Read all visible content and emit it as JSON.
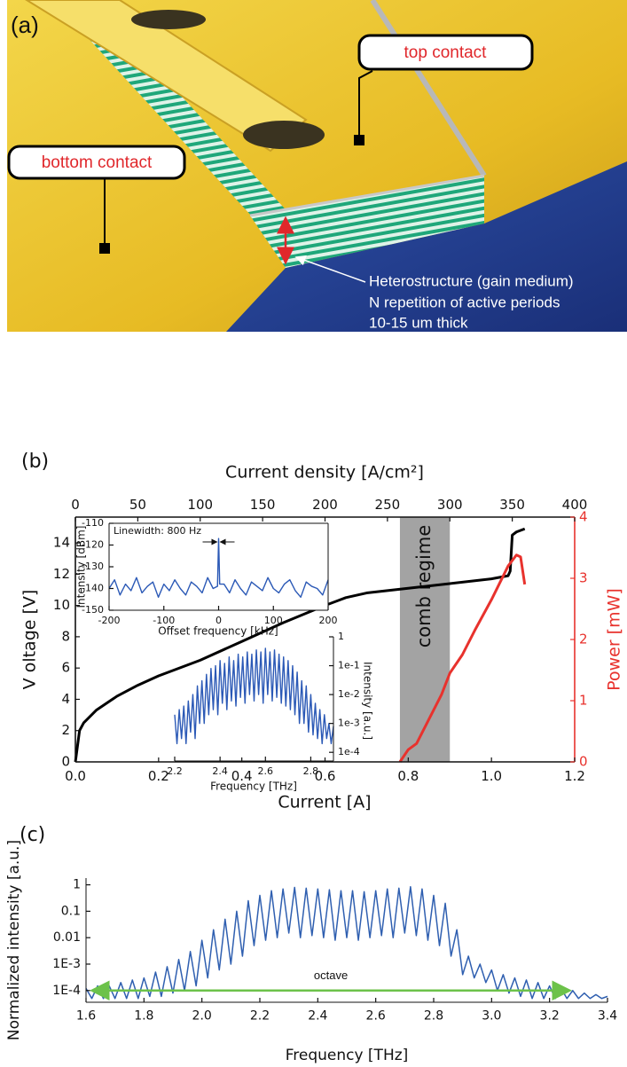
{
  "panel_a": {
    "label": "(a)",
    "callouts": [
      "top contact",
      "bottom contact"
    ],
    "annotation": [
      "Heterostructure (gain medium)",
      "N repetition of active periods",
      "10-15 um thick"
    ]
  },
  "chart_data": [
    {
      "type": "line",
      "panel_label": "(b)",
      "xlabel": "Current [A]",
      "x2label": "Current density [A/cm²]",
      "ylabel": "V oltage [V]",
      "y2label": "Power [mW]",
      "xlim": [
        0,
        1.2
      ],
      "xticks": [
        {
          "value": 0,
          "label": "0.0"
        },
        0.2,
        0.4,
        0.6,
        0.8,
        {
          "value": 1,
          "label": "1.0"
        },
        1.2
      ],
      "x2lim": [
        0,
        400
      ],
      "x2ticks": [
        0,
        50,
        100,
        150,
        200,
        250,
        300,
        350,
        400
      ],
      "ylim": [
        0,
        15.65
      ],
      "yticks": [
        0,
        2,
        4,
        6,
        8,
        10,
        12,
        14
      ],
      "y2lim": [
        0,
        4
      ],
      "y2ticks": [
        0,
        1,
        2,
        3,
        4
      ],
      "bands": [
        {
          "label": "comb regime",
          "range": [
            0.78,
            0.9
          ],
          "color": "#a3a3a3"
        }
      ],
      "series": [
        {
          "color": "#000000",
          "x": [
            0,
            0.01,
            0.02,
            0.05,
            0.1,
            0.15,
            0.2,
            0.3,
            0.4,
            0.5,
            0.6,
            0.65,
            0.7,
            0.8,
            0.9,
            1.0,
            1.04,
            1.045,
            1.05,
            1.06,
            1.08
          ],
          "values": [
            0,
            2,
            2.5,
            3.3,
            4.2,
            4.9,
            5.5,
            6.5,
            7.7,
            8.9,
            10,
            10.5,
            10.8,
            11.1,
            11.4,
            11.7,
            11.9,
            12.2,
            14.5,
            14.7,
            14.9
          ]
        },
        {
          "color": "#e8322d",
          "axis": "y2",
          "x": [
            0.78,
            0.8,
            0.82,
            0.85,
            0.88,
            0.9,
            0.93,
            0.96,
            1.0,
            1.04,
            1.06,
            1.07,
            1.08
          ],
          "values": [
            0,
            0.2,
            0.3,
            0.7,
            1.1,
            1.45,
            1.75,
            2.15,
            2.65,
            3.2,
            3.38,
            3.35,
            2.9
          ]
        }
      ]
    },
    {
      "type": "line",
      "xlabel": "Offset frequency  [kHz]",
      "ylabel": "Intensity [dBm]",
      "xlim": [
        -200,
        200
      ],
      "xticks": [
        -200,
        -100,
        0,
        100,
        200
      ],
      "ylim": [
        -150,
        -110
      ],
      "yticks": [
        -150,
        -140,
        -130,
        -120,
        -110
      ],
      "annotations": [
        {
          "text": "Linewidth: 800 Hz"
        }
      ],
      "series": [
        {
          "color": "#2b59b6",
          "x": [
            -200,
            -190,
            -180,
            -170,
            -160,
            -150,
            -140,
            -130,
            -120,
            -110,
            -100,
            -90,
            -80,
            -70,
            -60,
            -50,
            -40,
            -30,
            -20,
            -10,
            -2,
            0,
            2,
            10,
            20,
            30,
            40,
            50,
            60,
            70,
            80,
            90,
            100,
            110,
            120,
            130,
            140,
            150,
            160,
            170,
            180,
            190,
            200
          ],
          "values": [
            -140,
            -136,
            -143,
            -138,
            -141,
            -135,
            -142,
            -139,
            -137,
            -144,
            -138,
            -141,
            -136,
            -140,
            -143,
            -137,
            -139,
            -142,
            -135,
            -140,
            -139,
            -117,
            -138,
            -138,
            -142,
            -136,
            -140,
            -143,
            -137,
            -139,
            -141,
            -135,
            -140,
            -142,
            -138,
            -136,
            -141,
            -144,
            -137,
            -139,
            -140,
            -143,
            -136
          ]
        }
      ]
    },
    {
      "type": "line",
      "xlabel": "Frequency [THz]",
      "ylabel": "Intensity [a.u.]",
      "xlim": [
        2.2,
        2.9
      ],
      "xticks": [
        2.2,
        2.4,
        2.6,
        2.8
      ],
      "yscale": "log",
      "ylim": [
        5e-05,
        1
      ],
      "yticks": [
        1,
        {
          "value": 0.1,
          "label": "1e-1"
        },
        {
          "value": 0.01,
          "label": "1e-2"
        },
        {
          "value": 0.001,
          "label": "1e-3"
        },
        {
          "value": 0.0001,
          "label": "1e-4"
        }
      ],
      "series": [
        {
          "color": "#2b59b6",
          "x": [
            2.2,
            2.21,
            2.22,
            2.23,
            2.24,
            2.25,
            2.26,
            2.27,
            2.28,
            2.29,
            2.3,
            2.31,
            2.32,
            2.33,
            2.34,
            2.35,
            2.36,
            2.37,
            2.38,
            2.39,
            2.4,
            2.41,
            2.42,
            2.43,
            2.44,
            2.45,
            2.46,
            2.47,
            2.48,
            2.49,
            2.5,
            2.51,
            2.52,
            2.53,
            2.54,
            2.55,
            2.56,
            2.57,
            2.58,
            2.59,
            2.6,
            2.61,
            2.62,
            2.63,
            2.64,
            2.65,
            2.66,
            2.67,
            2.68,
            2.69,
            2.7,
            2.71,
            2.72,
            2.73,
            2.74,
            2.75,
            2.76,
            2.77,
            2.78,
            2.79,
            2.8,
            2.81,
            2.82,
            2.83,
            2.84,
            2.85,
            2.86,
            2.87,
            2.88,
            2.89,
            2.9
          ],
          "values": [
            0.002,
            0.0002,
            0.003,
            0.0003,
            0.004,
            0.0002,
            0.006,
            0.0005,
            0.01,
            0.0003,
            0.02,
            0.001,
            0.03,
            0.001,
            0.05,
            0.002,
            0.08,
            0.003,
            0.1,
            0.002,
            0.15,
            0.005,
            0.12,
            0.003,
            0.2,
            0.006,
            0.15,
            0.004,
            0.25,
            0.008,
            0.2,
            0.005,
            0.3,
            0.01,
            0.25,
            0.006,
            0.35,
            0.01,
            0.3,
            0.005,
            0.4,
            0.01,
            0.3,
            0.006,
            0.35,
            0.008,
            0.25,
            0.005,
            0.2,
            0.004,
            0.15,
            0.003,
            0.1,
            0.002,
            0.06,
            0.001,
            0.03,
            0.001,
            0.02,
            0.0005,
            0.01,
            0.0004,
            0.005,
            0.0003,
            0.003,
            0.0002,
            0.002,
            0.0003,
            0.001,
            0.0002,
            0.0008
          ]
        }
      ]
    },
    {
      "type": "line",
      "panel_label": "(c)",
      "xlabel": "Frequency [THz]",
      "ylabel": "Normalized intensity [a.u.]",
      "xlim": [
        1.6,
        3.4
      ],
      "xticks": [
        1.6,
        1.8,
        {
          "value": 2,
          "label": "2.0"
        },
        2.2,
        2.4,
        2.6,
        2.8,
        {
          "value": 3,
          "label": "3.0"
        },
        3.2,
        3.4
      ],
      "yscale": "log",
      "ylim": [
        3.6e-05,
        1.8
      ],
      "yticks": [
        1,
        0.1,
        0.01,
        {
          "value": 0.001,
          "label": "1E-3"
        },
        {
          "value": 0.0001,
          "label": "1E-4"
        }
      ],
      "annotations": [
        {
          "text": "octave",
          "x": [
            1.62,
            3.27
          ],
          "y": 0.0001,
          "color": "#6cc24a"
        }
      ],
      "series": [
        {
          "color": "#2f5fb0",
          "x": [
            1.6,
            1.62,
            1.64,
            1.66,
            1.68,
            1.7,
            1.72,
            1.74,
            1.76,
            1.78,
            1.8,
            1.82,
            1.84,
            1.86,
            1.88,
            1.9,
            1.92,
            1.94,
            1.96,
            1.98,
            2.0,
            2.02,
            2.04,
            2.06,
            2.08,
            2.1,
            2.12,
            2.14,
            2.16,
            2.18,
            2.2,
            2.22,
            2.24,
            2.26,
            2.28,
            2.3,
            2.32,
            2.34,
            2.36,
            2.38,
            2.4,
            2.42,
            2.44,
            2.46,
            2.48,
            2.5,
            2.52,
            2.54,
            2.56,
            2.58,
            2.6,
            2.62,
            2.64,
            2.66,
            2.68,
            2.7,
            2.72,
            2.74,
            2.76,
            2.78,
            2.8,
            2.82,
            2.84,
            2.86,
            2.88,
            2.9,
            2.92,
            2.94,
            2.96,
            2.98,
            3.0,
            3.02,
            3.04,
            3.06,
            3.08,
            3.1,
            3.12,
            3.14,
            3.16,
            3.18,
            3.2,
            3.22,
            3.24,
            3.26,
            3.28,
            3.3,
            3.32,
            3.34,
            3.36,
            3.38,
            3.4
          ],
          "values": [
            0.00012,
            5e-05,
            0.00015,
            5e-05,
            0.00015,
            5e-05,
            0.0002,
            5e-05,
            0.00025,
            5e-05,
            0.0003,
            6e-05,
            0.0005,
            6e-05,
            0.0008,
            8e-05,
            0.0015,
            0.0001,
            0.003,
            0.00015,
            0.008,
            0.0003,
            0.02,
            0.0006,
            0.05,
            0.001,
            0.1,
            0.002,
            0.25,
            0.005,
            0.4,
            0.008,
            0.6,
            0.01,
            0.7,
            0.015,
            0.8,
            0.01,
            0.75,
            0.012,
            0.7,
            0.01,
            0.65,
            0.008,
            0.6,
            0.01,
            0.6,
            0.008,
            0.55,
            0.01,
            0.6,
            0.012,
            0.7,
            0.01,
            0.75,
            0.015,
            0.85,
            0.012,
            0.7,
            0.008,
            0.4,
            0.005,
            0.2,
            0.002,
            0.02,
            0.0004,
            0.002,
            0.0003,
            0.001,
            0.0002,
            0.0006,
            0.0001,
            0.0004,
            8e-05,
            0.0003,
            6e-05,
            0.00025,
            5e-05,
            0.0002,
            5e-05,
            0.00015,
            5e-05,
            0.00012,
            5e-05,
            0.0001,
            5e-05,
            8e-05,
            5e-05,
            7e-05,
            5e-05,
            6e-05
          ]
        }
      ]
    }
  ]
}
